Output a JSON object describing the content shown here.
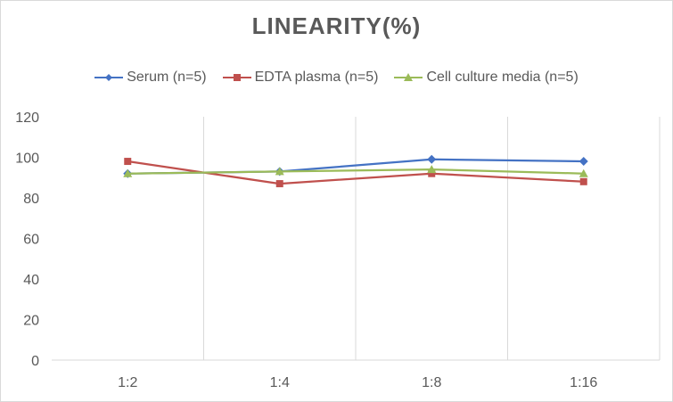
{
  "chart_data": {
    "type": "line",
    "title": "LINEARITY(%)",
    "categories": [
      "1:2",
      "1:4",
      "1:8",
      "1:16"
    ],
    "ylim": [
      0,
      120
    ],
    "yticks": [
      0,
      20,
      40,
      60,
      80,
      100,
      120
    ],
    "grid": "vertical",
    "legend_position": "top",
    "series": [
      {
        "name": "Serum (n=5)",
        "values": [
          92,
          93,
          99,
          98
        ],
        "color": "#4472c4",
        "marker": "diamond"
      },
      {
        "name": "EDTA plasma (n=5)",
        "values": [
          98,
          87,
          92,
          88
        ],
        "color": "#c0504d",
        "marker": "square"
      },
      {
        "name": "Cell culture media (n=5)",
        "values": [
          92,
          93,
          94,
          92
        ],
        "color": "#9bbb59",
        "marker": "triangle"
      }
    ]
  }
}
